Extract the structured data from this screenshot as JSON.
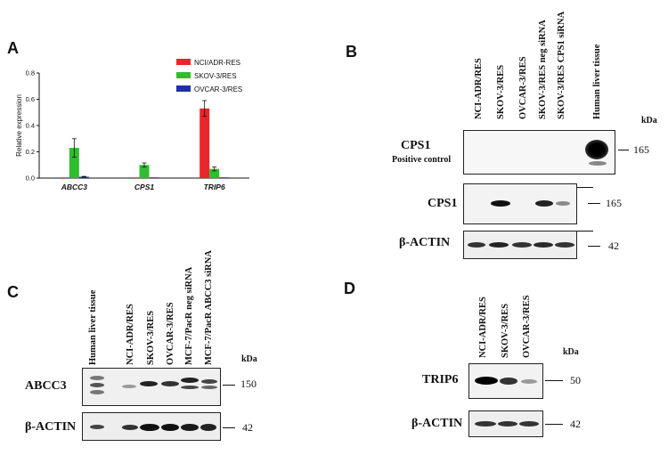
{
  "panels": {
    "A": {
      "letter": "A",
      "chart_data": {
        "type": "bar",
        "categories": [
          "ABCC3",
          "CPS1",
          "TRIP6"
        ],
        "series": [
          {
            "name": "NCI/ADR-RES",
            "color": "#e8262b",
            "values": [
              0.0,
              0.0,
              0.53
            ],
            "errors": [
              0.0,
              0.0,
              0.06
            ]
          },
          {
            "name": "SKOV-3/RES",
            "color": "#2ebd2e",
            "values": [
              0.23,
              0.1,
              0.07
            ],
            "errors": [
              0.07,
              0.015,
              0.015
            ]
          },
          {
            "name": "OVCAR-3/RES",
            "color": "#1f2fa8",
            "values": [
              0.01,
              0.0,
              0.0
            ],
            "errors": [
              0.003,
              0.0,
              0.0
            ]
          }
        ],
        "ylabel": "Relative expression",
        "yticks": [
          "0.0",
          "0.2",
          "0.4",
          "0.6",
          "0.8"
        ],
        "ylim": [
          0,
          0.8
        ],
        "legend": "top-right"
      }
    },
    "B": {
      "letter": "B",
      "lanes": [
        "NCI-ADR/RES",
        "SKOV-3/RES",
        "OVCAR-3/RES",
        "SKOV-3/RES neg siRNA",
        "SKOV-3/RES CPS1 siRNA",
        "Human liver tissue"
      ],
      "kda": "kDa",
      "blots": [
        {
          "label": "CPS1",
          "sublabel": "Positive control",
          "marker": "165"
        },
        {
          "label": "CPS1",
          "marker": "165"
        },
        {
          "label": "β-ACTIN",
          "marker": "42"
        }
      ]
    },
    "C": {
      "letter": "C",
      "lanes": [
        "Human liver tissue",
        "NCI-ADR/RES",
        "SKOV-3/RES",
        "OVCAR-3/RES",
        "MCF-7/PacR neg siRNA",
        "MCF-7/PacR ABCC3 siRNA"
      ],
      "kda": "kDa",
      "blots": [
        {
          "label": "ABCC3",
          "marker": "150"
        },
        {
          "label": "β-ACTIN",
          "marker": "42"
        }
      ]
    },
    "D": {
      "letter": "D",
      "lanes": [
        "NCI-ADR/RES",
        "SKOV-3/RES",
        "OVCAR-3/RES"
      ],
      "kda": "kDa",
      "blots": [
        {
          "label": "TRIP6",
          "marker": "50"
        },
        {
          "label": "β-ACTIN",
          "marker": "42"
        }
      ]
    }
  }
}
